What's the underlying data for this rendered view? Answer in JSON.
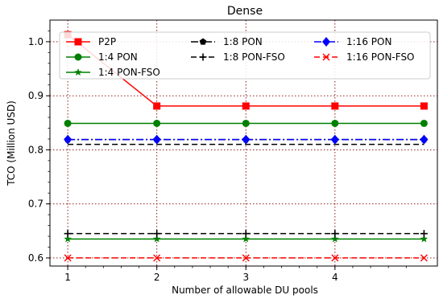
{
  "chart_data": {
    "type": "line",
    "title": "Dense",
    "xlabel": "Number of allowable DU pools",
    "ylabel": "TCO (Million USD)",
    "xlim": [
      0.8,
      5.15
    ],
    "ylim": [
      0.585,
      1.04
    ],
    "xticks": [
      1,
      2,
      3,
      4
    ],
    "xtick_labels": [
      "1",
      "2",
      "3",
      "4"
    ],
    "yticks": [
      0.6,
      0.7,
      0.8,
      0.9,
      1.0
    ],
    "ytick_labels": [
      "0.6",
      "0.7",
      "0.8",
      "0.9",
      "1.0"
    ],
    "grid": "dotted, dark red, x and y",
    "legend_placement": "upper, 3 columns",
    "x": [
      1,
      2,
      3,
      4,
      5
    ],
    "series": [
      {
        "name": "P2P",
        "values": [
          1.013,
          0.881,
          0.881,
          0.881,
          0.881
        ],
        "color": "#ff0000",
        "linestyle": "solid",
        "marker": "square"
      },
      {
        "name": "1:4 PON",
        "values": [
          0.849,
          0.849,
          0.849,
          0.849,
          0.849
        ],
        "color": "#008000",
        "linestyle": "solid",
        "marker": "circle"
      },
      {
        "name": "1:4 PON-FSO",
        "values": [
          0.635,
          0.635,
          0.635,
          0.635,
          0.635
        ],
        "color": "#008000",
        "linestyle": "solid",
        "marker": "star"
      },
      {
        "name": "1:8 PON",
        "values": [
          0.819,
          0.819,
          0.819,
          0.819,
          0.819
        ],
        "color": "#000000",
        "linestyle": "dashdot",
        "marker": "pentagon"
      },
      {
        "name": "1:8 PON-FSO",
        "values": [
          0.645,
          0.645,
          0.645,
          0.645,
          0.645
        ],
        "color": "#000000",
        "linestyle": "dashed",
        "marker": "plus"
      },
      {
        "name": "1:16 PON",
        "values": [
          0.819,
          0.819,
          0.819,
          0.819,
          0.819
        ],
        "color": "#0000ff",
        "linestyle": "dashdot",
        "marker": "diamond"
      },
      {
        "name": "1:16 PON-FSO",
        "values": [
          0.6,
          0.6,
          0.6,
          0.6,
          0.6
        ],
        "color": "#ff0000",
        "linestyle": "dashed",
        "marker": "x"
      }
    ],
    "extra_lines": [
      {
        "values": [
          0.81,
          0.81,
          0.81,
          0.81,
          0.81
        ],
        "color": "#000000",
        "linestyle": "dashed"
      }
    ],
    "legend_order": [
      "P2P",
      "1:4 PON",
      "1:4 PON-FSO",
      "1:8 PON",
      "1:8 PON-FSO",
      "1:16 PON",
      "1:16 PON-FSO"
    ]
  }
}
